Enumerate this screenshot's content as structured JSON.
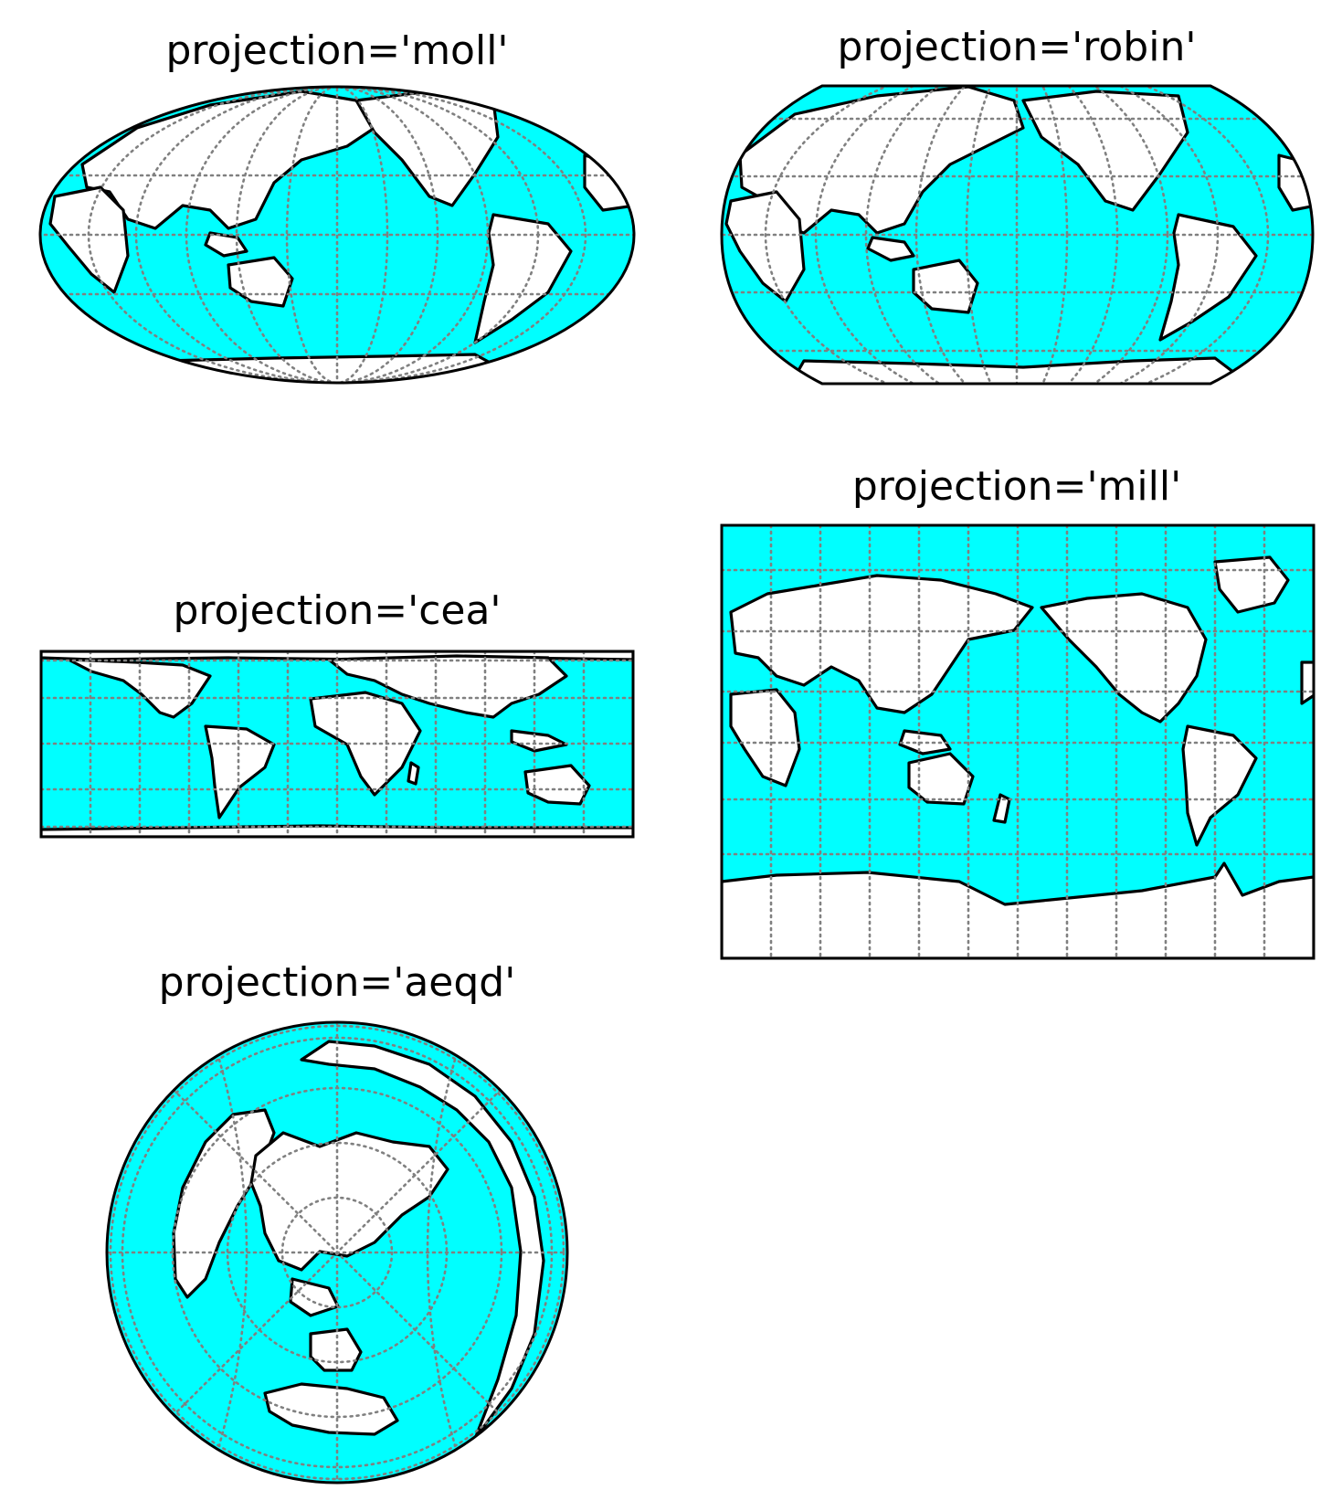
{
  "figure": {
    "ocean_color": "#00ffff",
    "land_color": "#ffffff",
    "coastline_color": "#000000",
    "graticule_color": "#808080"
  },
  "panels": [
    {
      "id": "moll",
      "title": "projection='moll'",
      "projection": "moll",
      "shape": "ellipse"
    },
    {
      "id": "robin",
      "title": "projection='robin'",
      "projection": "robin",
      "shape": "rounded-rect"
    },
    {
      "id": "cea",
      "title": "projection='cea'",
      "projection": "cea",
      "shape": "rect"
    },
    {
      "id": "mill",
      "title": "projection='mill'",
      "projection": "mill",
      "shape": "rect"
    },
    {
      "id": "aeqd",
      "title": "projection='aeqd'",
      "projection": "aeqd",
      "shape": "circle"
    }
  ]
}
